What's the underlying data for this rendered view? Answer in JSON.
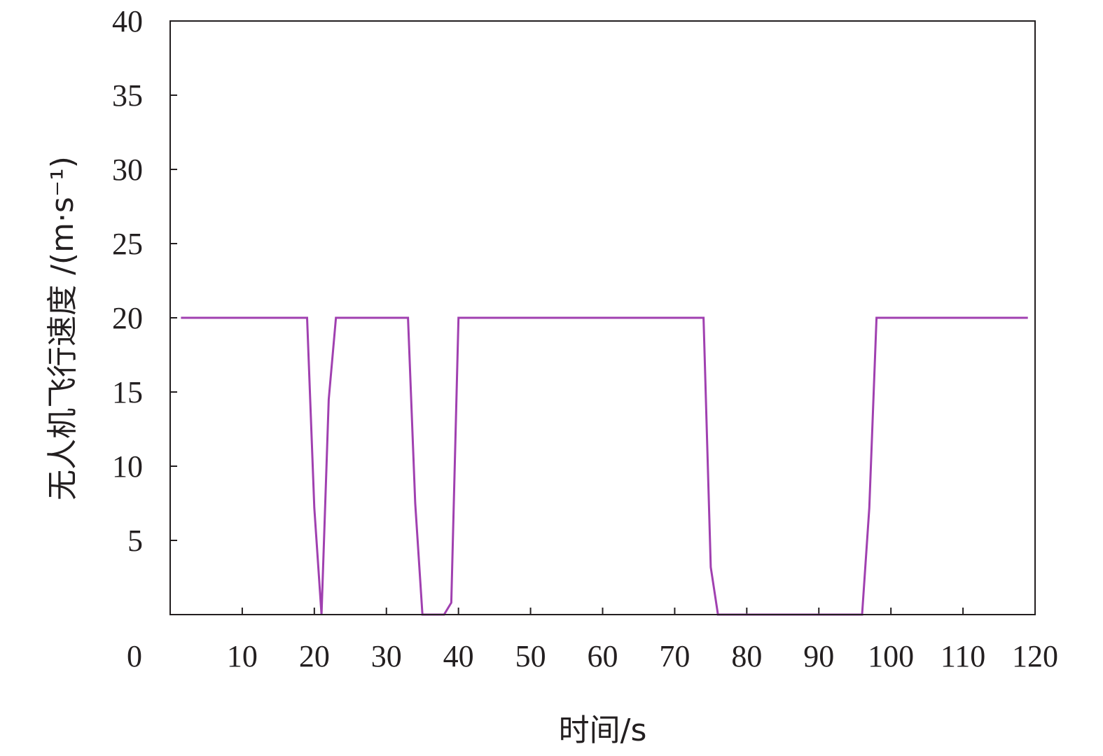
{
  "chart_data": {
    "type": "line",
    "title": "",
    "xlabel": "时间/s",
    "ylabel": "无人机飞行速度 /(m·s⁻¹)",
    "xlim": [
      0,
      120
    ],
    "ylim": [
      0,
      40
    ],
    "x_ticks": [
      10,
      20,
      30,
      40,
      50,
      60,
      70,
      80,
      90,
      100,
      110,
      120
    ],
    "y_ticks": [
      5,
      10,
      15,
      20,
      25,
      30,
      35,
      40
    ],
    "origin_label": "0",
    "grid": false,
    "legend": "none",
    "series": [
      {
        "color": "#a040b0",
        "x": [
          1.5,
          19,
          20,
          21,
          22,
          23,
          33,
          34,
          35,
          38,
          39,
          40,
          74,
          75,
          76,
          96,
          97,
          98,
          119
        ],
        "y": [
          20,
          20,
          7.2,
          0,
          14.5,
          20,
          20,
          7.5,
          0,
          0,
          0.8,
          20,
          20,
          3.2,
          0,
          0,
          7.2,
          20,
          20
        ]
      }
    ]
  }
}
